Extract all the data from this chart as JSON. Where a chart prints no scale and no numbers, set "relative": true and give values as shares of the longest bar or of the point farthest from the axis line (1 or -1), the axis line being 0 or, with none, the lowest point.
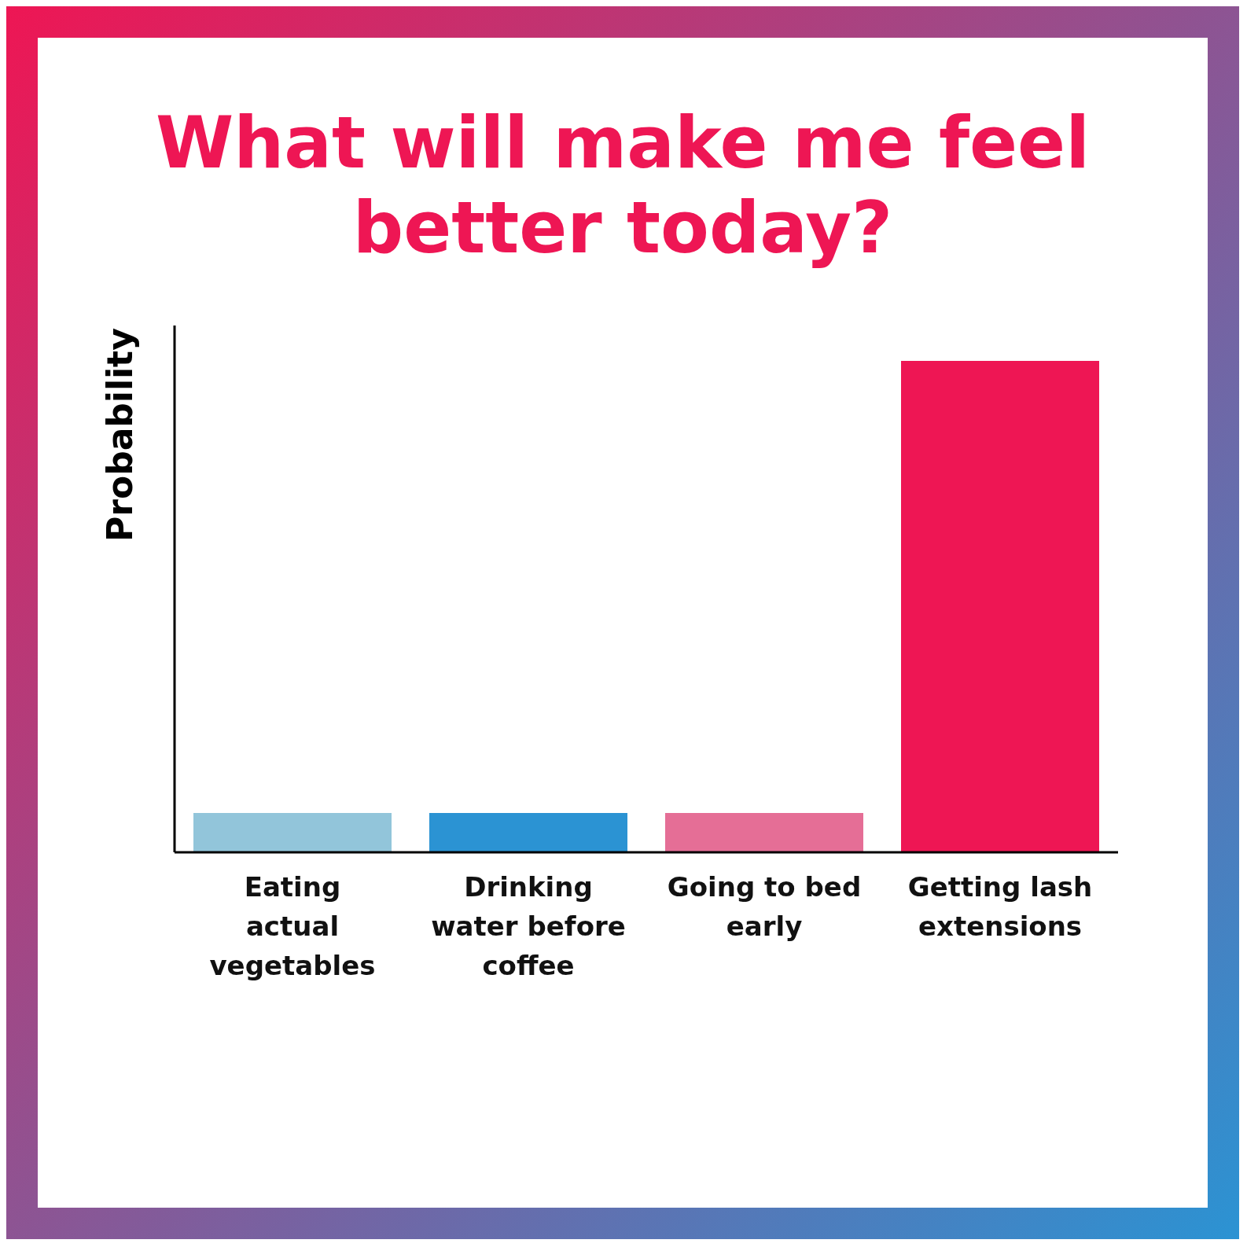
{
  "chart_data": {
    "type": "bar",
    "title": "What will make me feel better today?",
    "ylabel": "Probability",
    "relative": true,
    "categories": [
      "Eating actual vegetables",
      "Drinking water before coffee",
      "Going to bed early",
      "Getting lash extensions"
    ],
    "values": [
      0.08,
      0.08,
      0.08,
      1
    ],
    "colors": [
      "#92c5da",
      "#2b93d3",
      "#e56e96",
      "#ee1654"
    ]
  }
}
